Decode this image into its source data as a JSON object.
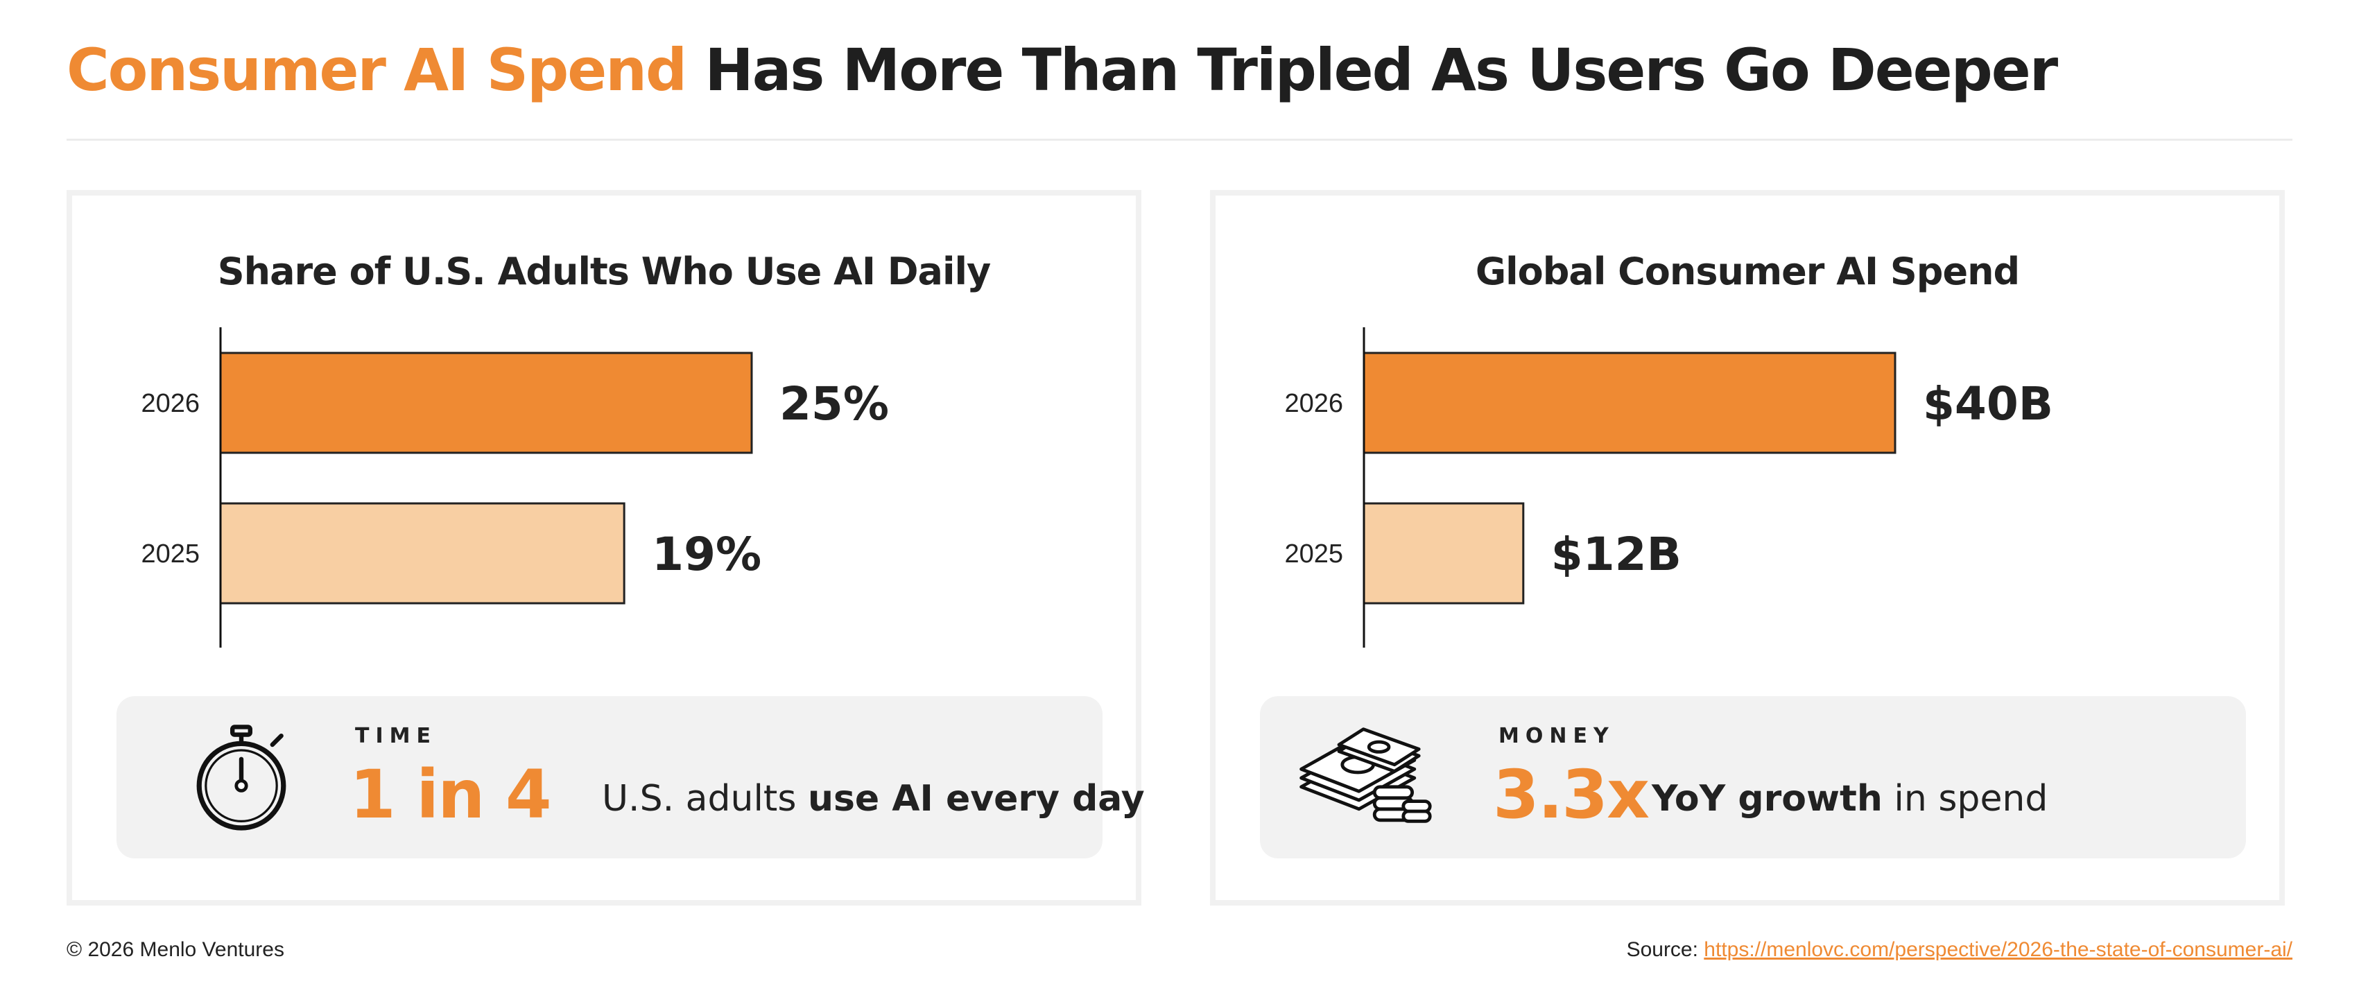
{
  "header": {
    "title_accent": "Consumer AI Spend",
    "title_rest": " Has More Than Tripled As Users Go Deeper"
  },
  "colors": {
    "accent": "#ef8a33",
    "light_bar": "#f8cfa3",
    "bar_stroke": "#222222"
  },
  "chart_data": [
    {
      "type": "bar",
      "orientation": "horizontal",
      "title": "Share of U.S. Adults Who Use AI Daily",
      "categories": [
        "2026",
        "2025"
      ],
      "values": [
        25,
        19
      ],
      "value_labels": [
        "25%",
        "19%"
      ],
      "xlim": [
        0,
        25
      ]
    },
    {
      "type": "bar",
      "orientation": "horizontal",
      "title": "Global Consumer AI Spend",
      "categories": [
        "2026",
        "2025"
      ],
      "values": [
        40,
        12
      ],
      "value_labels": [
        "$40B",
        "$12B"
      ],
      "xlim": [
        0,
        40
      ]
    }
  ],
  "callouts": {
    "time": {
      "icon": "stopwatch-icon",
      "kicker": "TIME",
      "big": "1 in 4",
      "desc_plain": "U.S. adults ",
      "desc_bold": "use AI every day"
    },
    "money": {
      "icon": "money-stack-icon",
      "kicker": "MONEY",
      "big": "3.3x",
      "desc_bold": "YoY growth",
      "desc_plain": " in spend"
    }
  },
  "footer": {
    "copyright": "© 2026 Menlo Ventures",
    "source_label": "Source: ",
    "source_link": "https://menlovc.com/perspective/2026-the-state-of-consumer-ai/"
  }
}
